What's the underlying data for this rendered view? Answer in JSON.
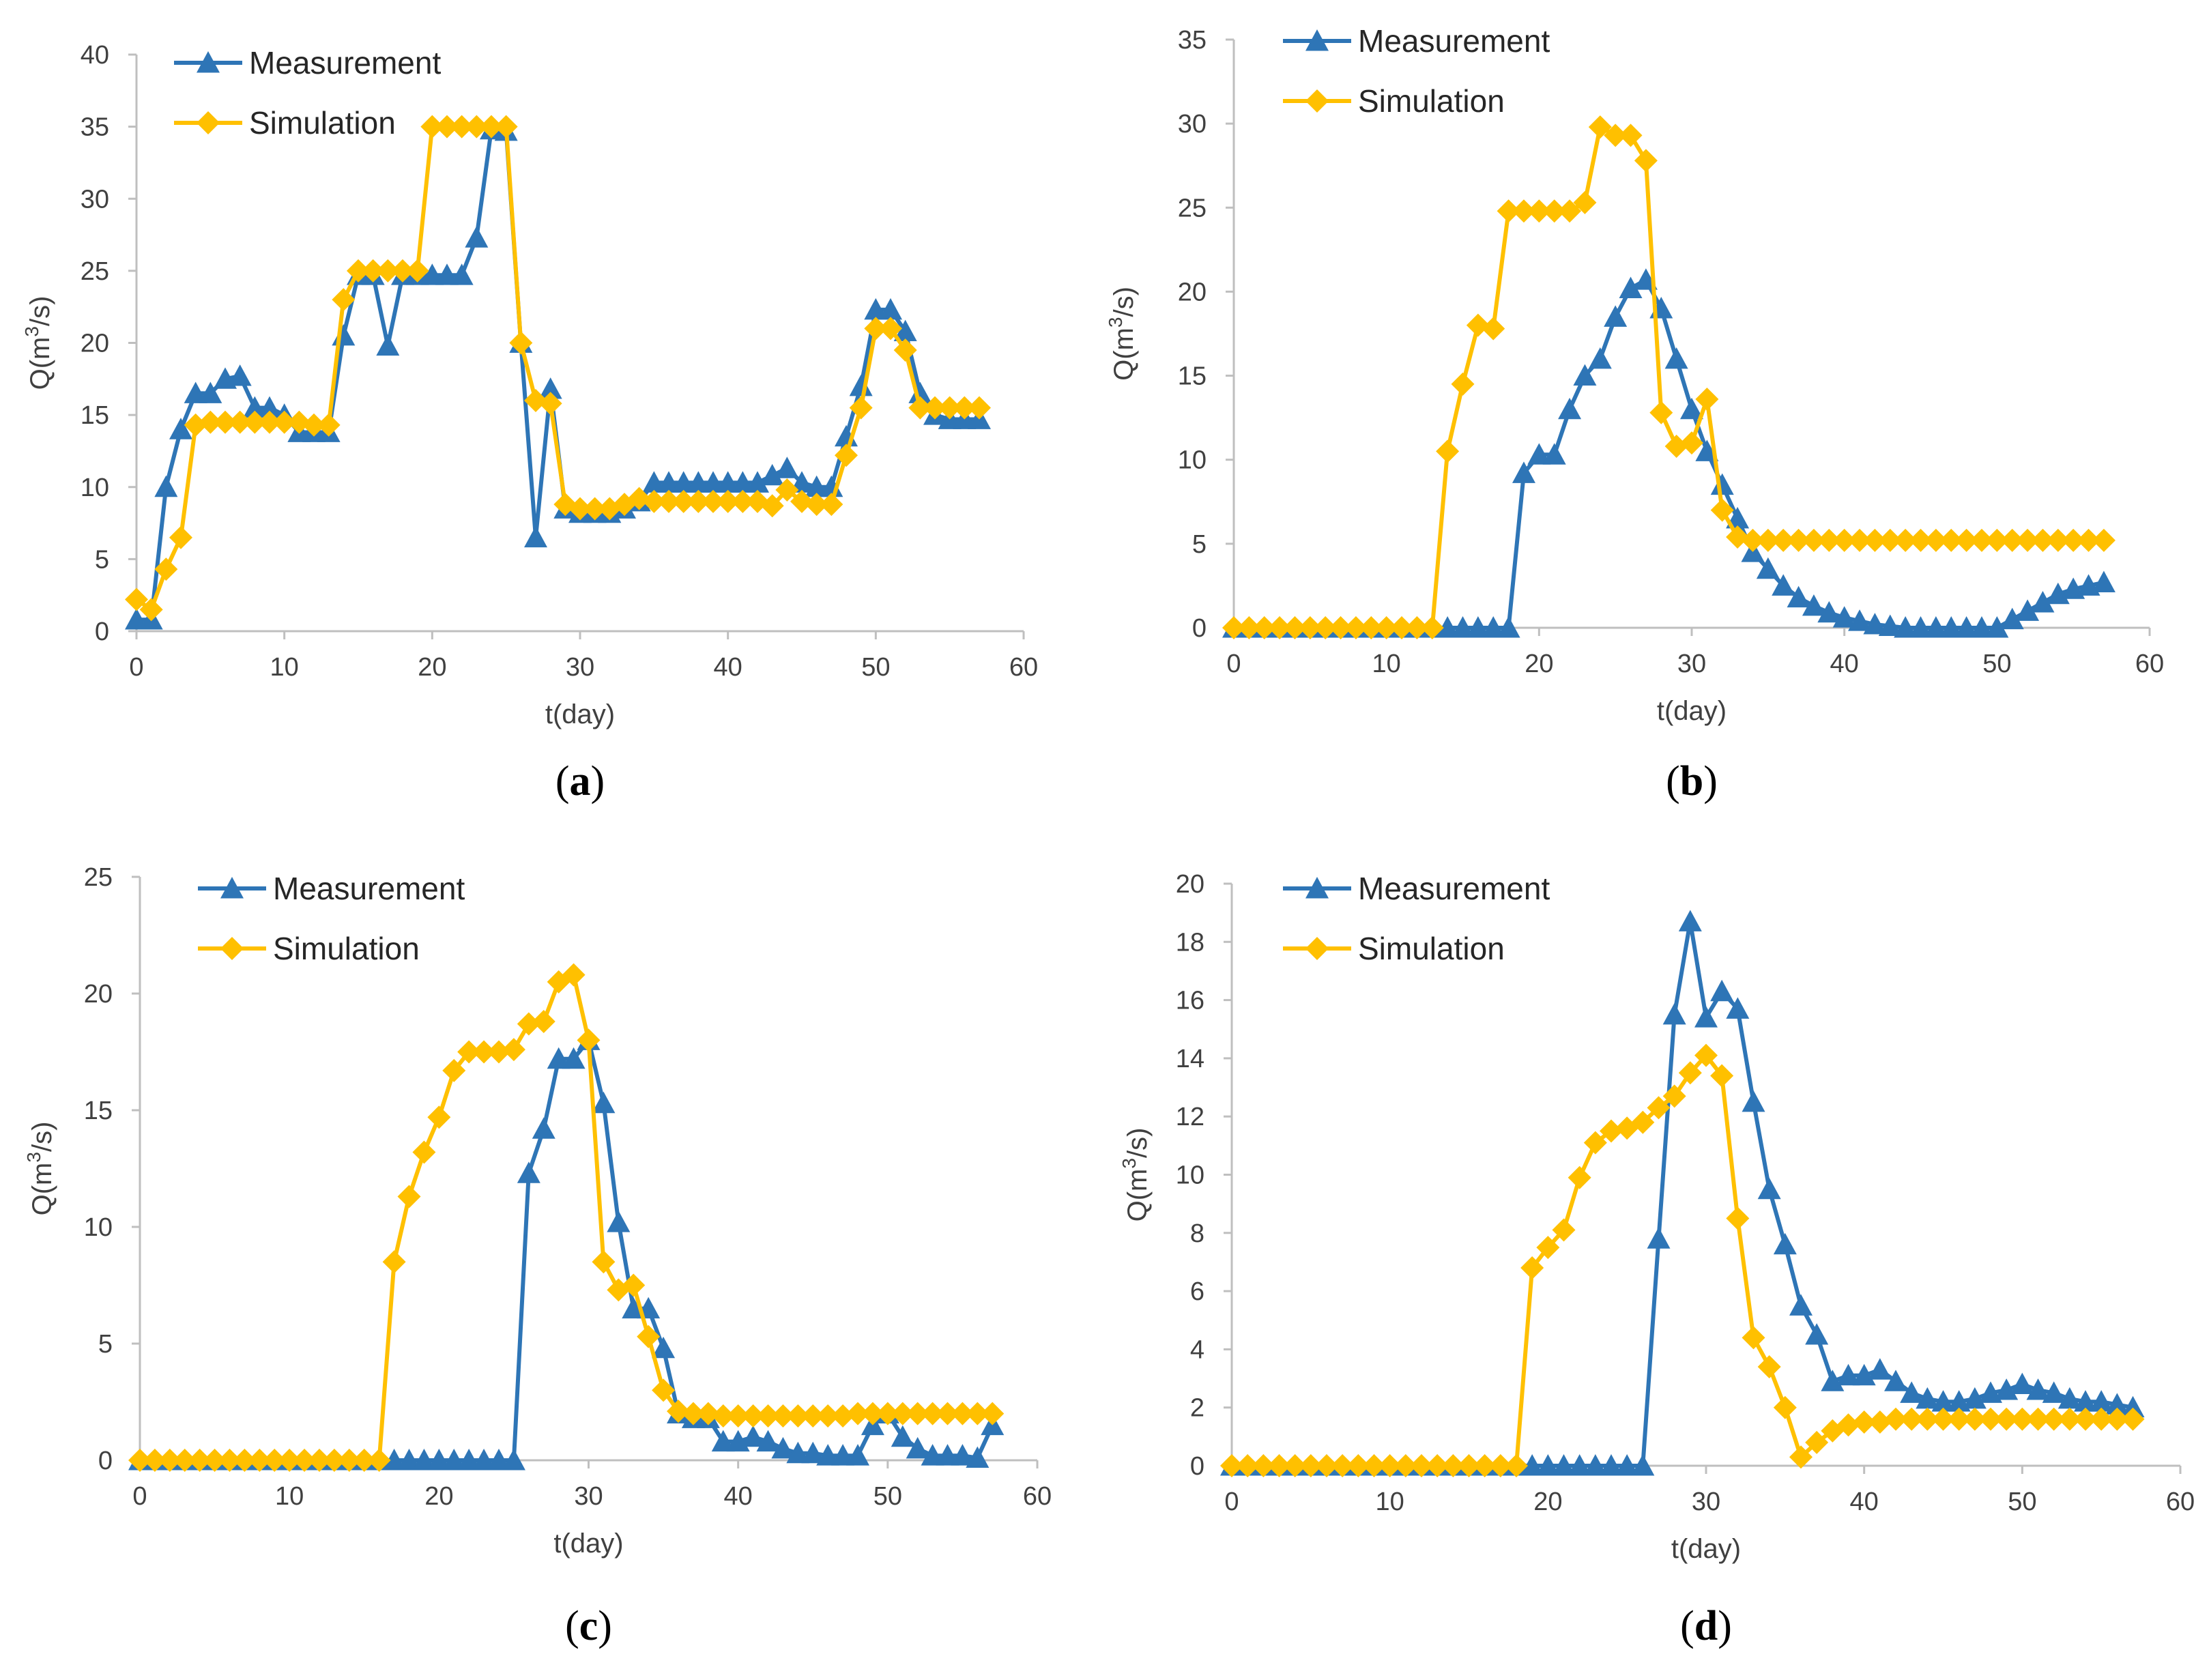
{
  "colors": {
    "measurement": "#2E75B6",
    "simulation": "#FFC000",
    "axis": "#BFBFBF",
    "text": "#404040"
  },
  "chart_data": [
    {
      "type": "line",
      "panel_label": "a",
      "caption_open": "(",
      "caption_close": ")",
      "xlabel": "t(day)",
      "ylabel_main": "Q(m",
      "ylabel_sup": "3",
      "ylabel_tail": "/s)",
      "xlim": [
        0,
        60
      ],
      "ylim": [
        0,
        40
      ],
      "xticks": [
        0,
        10,
        20,
        30,
        40,
        50,
        60
      ],
      "yticks": [
        0,
        5,
        10,
        15,
        20,
        25,
        30,
        35,
        40
      ],
      "legend_position": "top-left",
      "x": [
        0,
        1,
        2,
        3,
        4,
        5,
        6,
        7,
        8,
        9,
        10,
        11,
        12,
        13,
        14,
        15,
        16,
        17,
        18,
        19,
        20,
        21,
        22,
        23,
        24,
        25,
        26,
        27,
        28,
        29,
        30,
        31,
        32,
        33,
        34,
        35,
        36,
        37,
        38,
        39,
        40,
        41,
        42,
        43,
        44,
        45,
        46,
        47,
        48,
        49,
        50,
        51,
        52,
        53,
        54,
        55,
        56,
        57
      ],
      "series": [
        {
          "name": "Measurement",
          "marker": "triangle",
          "values": [
            0.8,
            0.8,
            10,
            14,
            16.5,
            16.5,
            17.5,
            17.7,
            15.5,
            15.5,
            15,
            13.8,
            13.8,
            13.8,
            20.5,
            24.7,
            24.7,
            19.8,
            24.7,
            24.7,
            24.7,
            24.7,
            24.7,
            27.3,
            34.8,
            34.7,
            20,
            6.5,
            16.8,
            8.5,
            8.2,
            8.2,
            8.2,
            8.5,
            9,
            10.3,
            10.3,
            10.3,
            10.3,
            10.3,
            10.3,
            10.3,
            10.3,
            10.8,
            11.3,
            10.3,
            10,
            10,
            13.5,
            17,
            22.3,
            22.3,
            20.8,
            16.5,
            15,
            14.7,
            14.7,
            14.7
          ]
        },
        {
          "name": "Simulation",
          "marker": "diamond",
          "values": [
            2.2,
            1.5,
            4.3,
            6.5,
            14.3,
            14.5,
            14.5,
            14.5,
            14.5,
            14.5,
            14.5,
            14.5,
            14.3,
            14.3,
            23,
            25,
            25,
            25,
            25,
            25,
            35,
            35,
            35,
            35,
            35,
            35,
            20,
            16,
            15.8,
            8.8,
            8.5,
            8.5,
            8.5,
            8.8,
            9.2,
            9,
            9,
            9,
            9,
            9,
            9,
            9,
            9,
            8.7,
            9.8,
            9,
            8.8,
            8.8,
            12.2,
            15.5,
            21,
            21,
            19.5,
            15.5,
            15.5,
            15.5,
            15.5,
            15.5
          ]
        }
      ]
    },
    {
      "type": "line",
      "panel_label": "b",
      "caption_open": "(",
      "caption_close": ")",
      "xlabel": "t(day)",
      "ylabel_main": "Q(m",
      "ylabel_sup": "3",
      "ylabel_tail": "/s)",
      "xlim": [
        0,
        60
      ],
      "ylim": [
        0,
        35
      ],
      "xticks": [
        0,
        10,
        20,
        30,
        40,
        50,
        60
      ],
      "yticks": [
        0,
        5,
        10,
        15,
        20,
        25,
        30,
        35
      ],
      "legend_position": "top-left",
      "x": [
        0,
        1,
        2,
        3,
        4,
        5,
        6,
        7,
        8,
        9,
        10,
        11,
        12,
        13,
        14,
        15,
        16,
        17,
        18,
        19,
        20,
        21,
        22,
        23,
        24,
        25,
        26,
        27,
        28,
        29,
        30,
        31,
        32,
        33,
        34,
        35,
        36,
        37,
        38,
        39,
        40,
        41,
        42,
        43,
        44,
        45,
        46,
        47,
        48,
        49,
        50,
        51,
        52,
        53,
        54,
        55,
        56,
        57
      ],
      "series": [
        {
          "name": "Measurement",
          "marker": "triangle",
          "values": [
            0,
            0,
            0,
            0,
            0,
            0,
            0,
            0,
            0,
            0,
            0,
            0,
            0,
            0,
            0,
            0,
            0,
            0,
            0,
            9.2,
            10.3,
            10.3,
            13,
            15,
            16,
            18.5,
            20.2,
            20.7,
            19,
            16,
            13,
            10.5,
            8.5,
            6.5,
            4.5,
            3.5,
            2.5,
            1.8,
            1.3,
            0.9,
            0.6,
            0.4,
            0.2,
            0.1,
            0,
            0,
            0,
            0,
            0,
            0,
            0,
            0.5,
            1,
            1.5,
            2,
            2.3,
            2.5,
            2.7
          ]
        },
        {
          "name": "Simulation",
          "marker": "diamond",
          "values": [
            0,
            0,
            0,
            0,
            0,
            0,
            0,
            0,
            0,
            0,
            0,
            0,
            0,
            0,
            10.5,
            14.5,
            18,
            17.8,
            24.8,
            24.8,
            24.8,
            24.8,
            24.8,
            25.3,
            29.8,
            29.3,
            29.3,
            27.8,
            12.8,
            10.8,
            11,
            13.6,
            7,
            5.4,
            5.2,
            5.2,
            5.2,
            5.2,
            5.2,
            5.2,
            5.2,
            5.2,
            5.2,
            5.2,
            5.2,
            5.2,
            5.2,
            5.2,
            5.2,
            5.2,
            5.2,
            5.2,
            5.2,
            5.2,
            5.2,
            5.2,
            5.2,
            5.2
          ]
        }
      ]
    },
    {
      "type": "line",
      "panel_label": "c",
      "caption_open": "(",
      "caption_close": ")",
      "xlabel": "t(day)",
      "ylabel_main": "Q(m",
      "ylabel_sup": "3",
      "ylabel_tail": "/s)",
      "xlim": [
        0,
        60
      ],
      "ylim": [
        0,
        25
      ],
      "xticks": [
        0,
        10,
        20,
        30,
        40,
        50,
        60
      ],
      "yticks": [
        0,
        5,
        10,
        15,
        20,
        25
      ],
      "legend_position": "top-left",
      "x": [
        0,
        1,
        2,
        3,
        4,
        5,
        6,
        7,
        8,
        9,
        10,
        11,
        12,
        13,
        14,
        15,
        16,
        17,
        18,
        19,
        20,
        21,
        22,
        23,
        24,
        25,
        26,
        27,
        28,
        29,
        30,
        31,
        32,
        33,
        34,
        35,
        36,
        37,
        38,
        39,
        40,
        41,
        42,
        43,
        44,
        45,
        46,
        47,
        48,
        49,
        50,
        51,
        52,
        53,
        54,
        55,
        56,
        57
      ],
      "series": [
        {
          "name": "Measurement",
          "marker": "triangle",
          "values": [
            0,
            0,
            0,
            0,
            0,
            0,
            0,
            0,
            0,
            0,
            0,
            0,
            0,
            0,
            0,
            0,
            0,
            0,
            0,
            0,
            0,
            0,
            0,
            0,
            0,
            0,
            12.3,
            14.2,
            17.2,
            17.2,
            18,
            15.3,
            10.2,
            6.5,
            6.5,
            4.8,
            2,
            1.8,
            1.8,
            0.8,
            0.8,
            1,
            0.8,
            0.5,
            0.3,
            0.3,
            0.2,
            0.2,
            0.2,
            1.5,
            2,
            1,
            0.5,
            0.2,
            0.2,
            0.2,
            0.1,
            1.5
          ]
        },
        {
          "name": "Simulation",
          "marker": "diamond",
          "values": [
            0,
            0,
            0,
            0,
            0,
            0,
            0,
            0,
            0,
            0,
            0,
            0,
            0,
            0,
            0,
            0,
            0,
            8.5,
            11.3,
            13.2,
            14.7,
            16.7,
            17.5,
            17.5,
            17.5,
            17.6,
            18.7,
            18.8,
            20.5,
            20.8,
            18,
            8.5,
            7.3,
            7.5,
            5.3,
            3,
            2.1,
            2,
            2,
            1.9,
            1.9,
            1.9,
            1.9,
            1.9,
            1.9,
            1.9,
            1.9,
            1.9,
            2,
            2,
            2,
            2,
            2,
            2,
            2,
            2,
            2,
            2
          ]
        }
      ]
    },
    {
      "type": "line",
      "panel_label": "d",
      "caption_open": "(",
      "caption_close": ")",
      "xlabel": "t(day)",
      "ylabel_main": "Q(m",
      "ylabel_sup": "3",
      "ylabel_tail": "/s)",
      "xlim": [
        0,
        60
      ],
      "ylim": [
        0,
        20
      ],
      "xticks": [
        0,
        10,
        20,
        30,
        40,
        50,
        60
      ],
      "yticks": [
        0,
        2,
        4,
        6,
        8,
        10,
        12,
        14,
        16,
        18,
        20
      ],
      "legend_position": "top-left",
      "x": [
        0,
        1,
        2,
        3,
        4,
        5,
        6,
        7,
        8,
        9,
        10,
        11,
        12,
        13,
        14,
        15,
        16,
        17,
        18,
        19,
        20,
        21,
        22,
        23,
        24,
        25,
        26,
        27,
        28,
        29,
        30,
        31,
        32,
        33,
        34,
        35,
        36,
        37,
        38,
        39,
        40,
        41,
        42,
        43,
        44,
        45,
        46,
        47,
        48,
        49,
        50,
        51,
        52,
        53,
        54,
        55,
        56,
        57
      ],
      "series": [
        {
          "name": "Measurement",
          "marker": "triangle",
          "values": [
            0,
            0,
            0,
            0,
            0,
            0,
            0,
            0,
            0,
            0,
            0,
            0,
            0,
            0,
            0,
            0,
            0,
            0,
            0,
            0,
            0,
            0,
            0,
            0,
            0,
            0,
            0,
            7.8,
            15.5,
            18.7,
            15.4,
            16.3,
            15.7,
            12.5,
            9.5,
            7.6,
            5.5,
            4.5,
            2.9,
            3.1,
            3.1,
            3.3,
            2.9,
            2.5,
            2.3,
            2.2,
            2.2,
            2.3,
            2.5,
            2.6,
            2.8,
            2.6,
            2.5,
            2.3,
            2.2,
            2.2,
            2.1,
            2
          ]
        },
        {
          "name": "Simulation",
          "marker": "diamond",
          "values": [
            0,
            0,
            0,
            0,
            0,
            0,
            0,
            0,
            0,
            0,
            0,
            0,
            0,
            0,
            0,
            0,
            0,
            0,
            0,
            6.8,
            7.5,
            8.1,
            9.9,
            11.1,
            11.5,
            11.6,
            11.8,
            12.3,
            12.7,
            13.5,
            14.1,
            13.4,
            8.5,
            4.4,
            3.4,
            2,
            0.3,
            0.8,
            1.2,
            1.4,
            1.5,
            1.5,
            1.6,
            1.6,
            1.6,
            1.6,
            1.6,
            1.6,
            1.6,
            1.6,
            1.6,
            1.6,
            1.6,
            1.6,
            1.6,
            1.6,
            1.6,
            1.6
          ]
        }
      ]
    }
  ]
}
